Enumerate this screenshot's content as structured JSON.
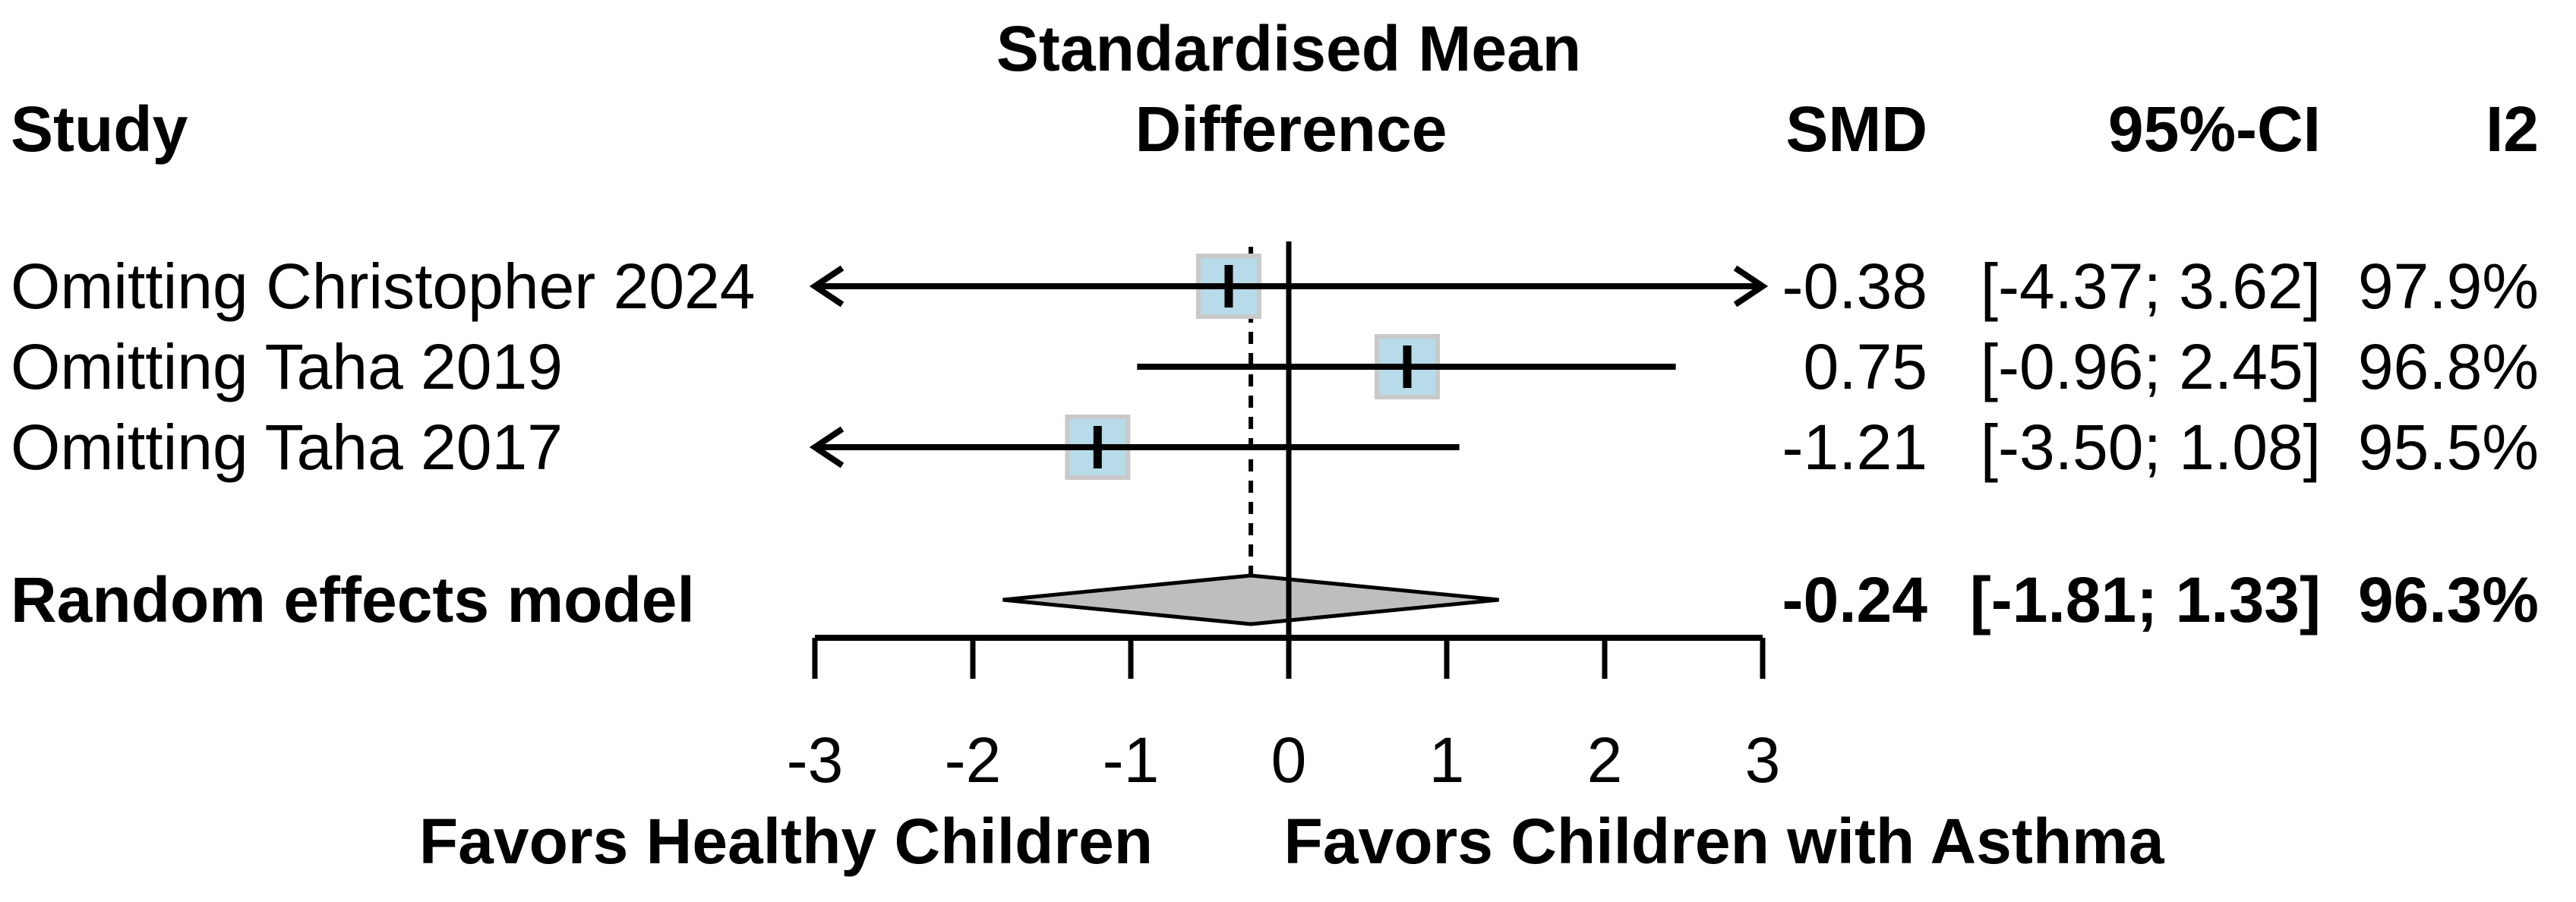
{
  "chart_data": {
    "type": "forest",
    "title_lines": [
      "Standardised Mean",
      "Difference"
    ],
    "columns": {
      "study": "Study",
      "smd": "SMD",
      "ci": "95%-CI",
      "i2": "I2"
    },
    "axis": {
      "min": -3,
      "max": 3,
      "ticks": [
        -3,
        -2,
        -1,
        0,
        1,
        2,
        3
      ],
      "tick_labels": [
        "-3",
        "-2",
        "-1",
        "0",
        "1",
        "2",
        "3"
      ],
      "zero_line": 0,
      "pooled_line": -0.24
    },
    "x_axis_labels": {
      "left": "Favors Healthy Children",
      "right": "Favors Children with Asthma"
    },
    "rows": [
      {
        "label": "Omitting Christopher 2024",
        "smd": -0.38,
        "ci_low": -4.37,
        "ci_high": 3.62,
        "i2": 97.9,
        "smd_text": "-0.38",
        "ci_text": "[-4.37; 3.62]",
        "i2_text": "97.9%"
      },
      {
        "label": "Omitting Taha 2019",
        "smd": 0.75,
        "ci_low": -0.96,
        "ci_high": 2.45,
        "i2": 96.8,
        "smd_text": "0.75",
        "ci_text": "[-0.96; 2.45]",
        "i2_text": "96.8%"
      },
      {
        "label": "Omitting Taha 2017",
        "smd": -1.21,
        "ci_low": -3.5,
        "ci_high": 1.08,
        "i2": 95.5,
        "smd_text": "-1.21",
        "ci_text": "[-3.50; 1.08]",
        "i2_text": "95.5%"
      }
    ],
    "pooled": {
      "label": "Random effects model",
      "smd": -0.24,
      "ci_low": -1.81,
      "ci_high": 1.33,
      "i2": 96.3,
      "smd_text": "-0.24",
      "ci_text": "[-1.81; 1.33]",
      "i2_text": "96.3%"
    },
    "colors": {
      "background": "#ffffff",
      "square_fill": "#b7dbe8",
      "square_border": "#c9c9c9",
      "diamond_fill": "#bebebe",
      "line": "#000000"
    }
  }
}
